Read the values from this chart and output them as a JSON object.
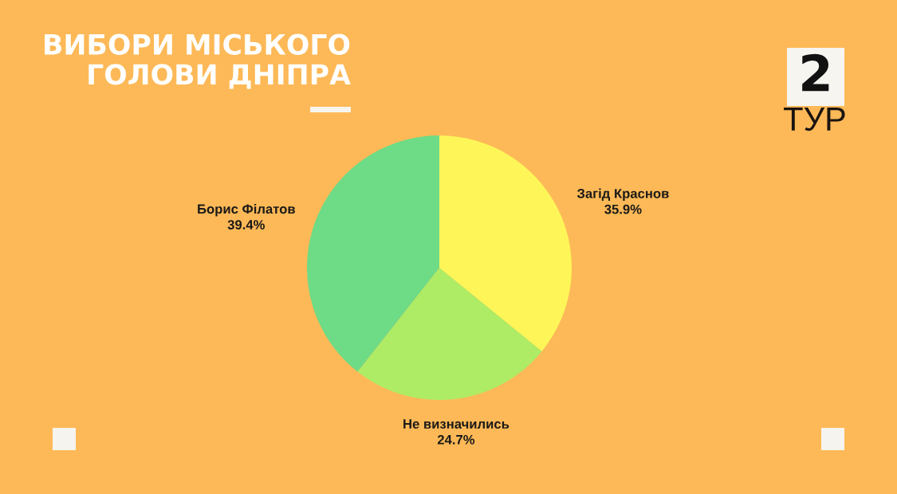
{
  "chart_data": {
    "type": "pie",
    "title": "ВИБОРИ МІСЬКОГО\nГОЛОВИ ДНІПРА",
    "categories": [
      "Загід Краснов",
      "Не визначились",
      "Борис Філатов"
    ],
    "values": [
      35.9,
      24.7,
      39.4
    ],
    "colors": [
      "#fef658",
      "#aeec66",
      "#6edb86"
    ],
    "value_labels": [
      "35.9%",
      "24.7%",
      "39.4%"
    ],
    "annotations": [
      "2",
      "ТУР"
    ]
  }
}
